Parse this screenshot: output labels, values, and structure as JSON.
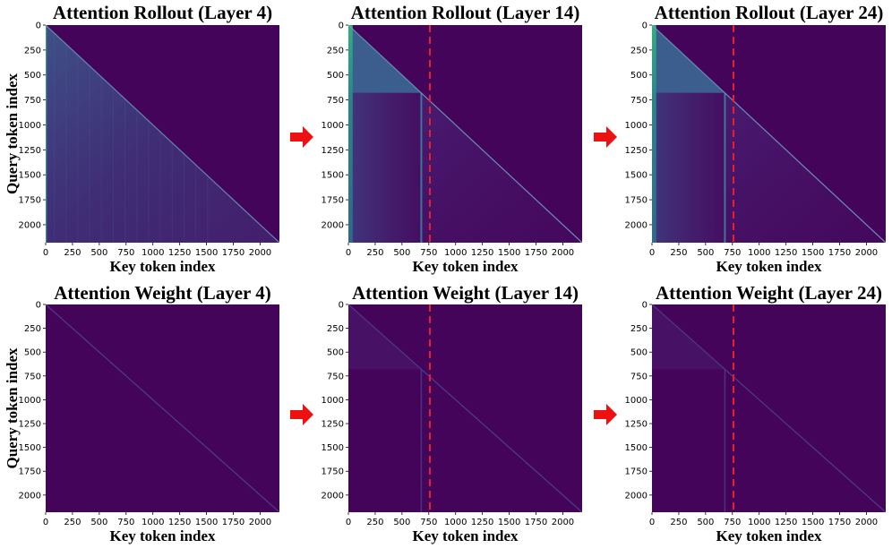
{
  "colors": {
    "background": "#44045a",
    "arrow": "#ee1111",
    "marker": "#e8202a",
    "tick": "#000000"
  },
  "chart_data": [
    {
      "type": "heatmap",
      "title": "Attention Rollout (Layer 4)",
      "xlabel": "Key token index",
      "ylabel": "Query token index",
      "xlim": [
        0,
        2180
      ],
      "ylim": [
        0,
        2180
      ],
      "xticks": [
        "0",
        "250",
        "500",
        "750",
        "1000",
        "1250",
        "1500",
        "1750",
        "2000"
      ],
      "yticks": [
        "0",
        "250",
        "500",
        "750",
        "1000",
        "1250",
        "1500",
        "1750",
        "2000"
      ],
      "pattern": "rollout",
      "layer": 4,
      "intensity": 0.55
    },
    {
      "type": "heatmap",
      "title": "Attention Rollout (Layer 14)",
      "xlabel": "Key token index",
      "ylabel": "",
      "xlim": [
        0,
        2180
      ],
      "ylim": [
        0,
        2180
      ],
      "xticks": [
        "0",
        "250",
        "500",
        "750",
        "1000",
        "1250",
        "1500",
        "1750",
        "2000"
      ],
      "yticks": [
        "0",
        "250",
        "500",
        "750",
        "1000",
        "1250",
        "1500",
        "1750",
        "2000"
      ],
      "pattern": "rollout",
      "layer": 14,
      "intensity": 0.6,
      "marker_x": 760,
      "image_token_end": 680
    },
    {
      "type": "heatmap",
      "title": "Attention Rollout (Layer 24)",
      "xlabel": "Key token index",
      "ylabel": "",
      "xlim": [
        0,
        2180
      ],
      "ylim": [
        0,
        2180
      ],
      "xticks": [
        "0",
        "250",
        "500",
        "750",
        "1000",
        "1250",
        "1500",
        "1750",
        "2000"
      ],
      "yticks": [
        "0",
        "250",
        "500",
        "750",
        "1000",
        "1250",
        "1500",
        "1750",
        "2000"
      ],
      "pattern": "rollout",
      "layer": 24,
      "intensity": 0.6,
      "marker_x": 760,
      "image_token_end": 680
    },
    {
      "type": "heatmap",
      "title": "Attention Weight (Layer 4)",
      "xlabel": "Key token index",
      "ylabel": "Query token index",
      "xlim": [
        0,
        2180
      ],
      "ylim": [
        0,
        2180
      ],
      "xticks": [
        "0",
        "250",
        "500",
        "750",
        "1000",
        "1250",
        "1500",
        "1750",
        "2000"
      ],
      "yticks": [
        "0",
        "250",
        "500",
        "750",
        "1000",
        "1250",
        "1500",
        "1750",
        "2000"
      ],
      "pattern": "weight",
      "layer": 4,
      "intensity": 0.12
    },
    {
      "type": "heatmap",
      "title": "Attention Weight (Layer 14)",
      "xlabel": "Key token index",
      "ylabel": "",
      "xlim": [
        0,
        2180
      ],
      "ylim": [
        0,
        2180
      ],
      "xticks": [
        "0",
        "250",
        "500",
        "750",
        "1000",
        "1250",
        "1500",
        "1750",
        "2000"
      ],
      "yticks": [
        "0",
        "250",
        "500",
        "750",
        "1000",
        "1250",
        "1500",
        "1750",
        "2000"
      ],
      "pattern": "weight",
      "layer": 14,
      "intensity": 0.2,
      "marker_x": 760,
      "image_token_end": 680
    },
    {
      "type": "heatmap",
      "title": "Attention Weight (Layer 24)",
      "xlabel": "Key token index",
      "ylabel": "",
      "xlim": [
        0,
        2180
      ],
      "ylim": [
        0,
        2180
      ],
      "xticks": [
        "0",
        "250",
        "500",
        "750",
        "1000",
        "1250",
        "1500",
        "1750",
        "2000"
      ],
      "yticks": [
        "0",
        "250",
        "500",
        "750",
        "1000",
        "1250",
        "1500",
        "1750",
        "2000"
      ],
      "pattern": "weight",
      "layer": 24,
      "intensity": 0.18,
      "marker_x": 760,
      "image_token_end": 680
    }
  ]
}
